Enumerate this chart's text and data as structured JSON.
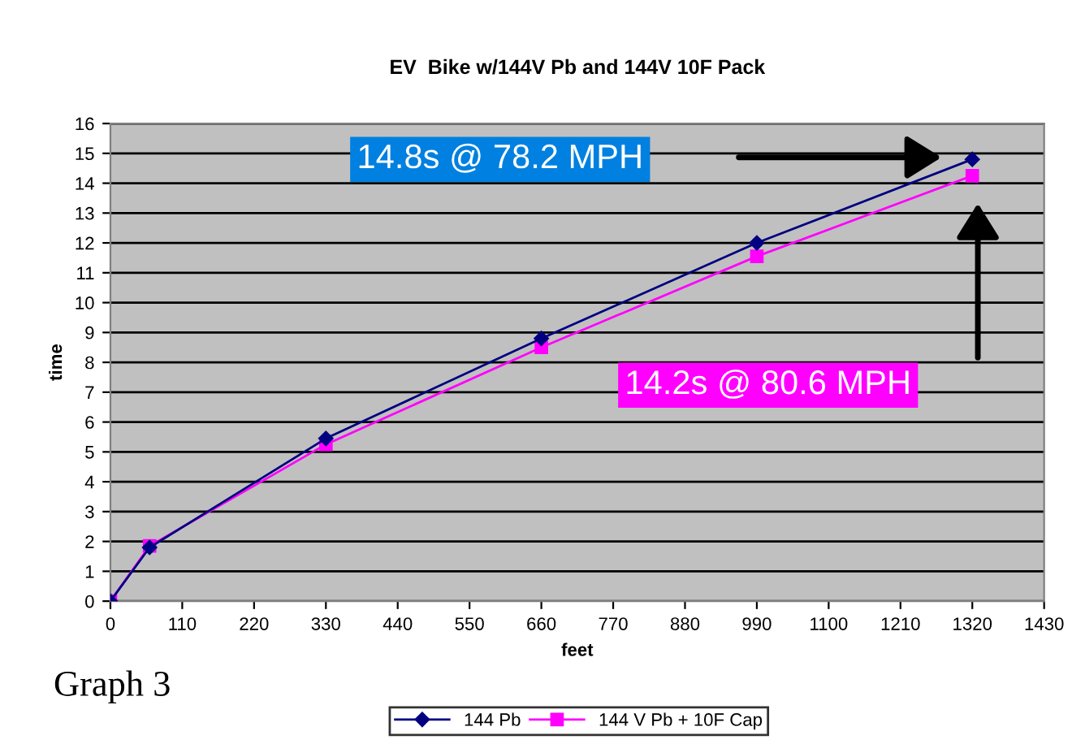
{
  "chart_data": {
    "type": "line",
    "title": "EV  Bike w/144V Pb and 144V 10F Pack",
    "xlabel": "feet",
    "ylabel": "time",
    "x": [
      0,
      60,
      330,
      660,
      990,
      1320
    ],
    "series": [
      {
        "name": "144 Pb",
        "color": "#000080",
        "marker": "diamond",
        "values": [
          0,
          1.8,
          5.45,
          8.8,
          12.0,
          14.8
        ]
      },
      {
        "name": "144 V Pb + 10F Cap",
        "color": "#ff00ff",
        "marker": "square",
        "values": [
          0,
          1.85,
          5.25,
          8.5,
          11.55,
          14.25
        ]
      }
    ],
    "xlim": [
      0,
      1430
    ],
    "xticks": [
      0,
      110,
      220,
      330,
      440,
      550,
      660,
      770,
      880,
      990,
      1100,
      1210,
      1320,
      1430
    ],
    "ylim": [
      0,
      16
    ],
    "yticks": [
      0,
      1,
      2,
      3,
      4,
      5,
      6,
      7,
      8,
      9,
      10,
      11,
      12,
      13,
      14,
      15,
      16
    ],
    "grid": "y",
    "legend": "bottom",
    "line_style": "solid",
    "annotations": [
      "14.8s @ 78.2 MPH",
      "14.2s @ 80.6 MPH",
      "Graph 3"
    ]
  }
}
